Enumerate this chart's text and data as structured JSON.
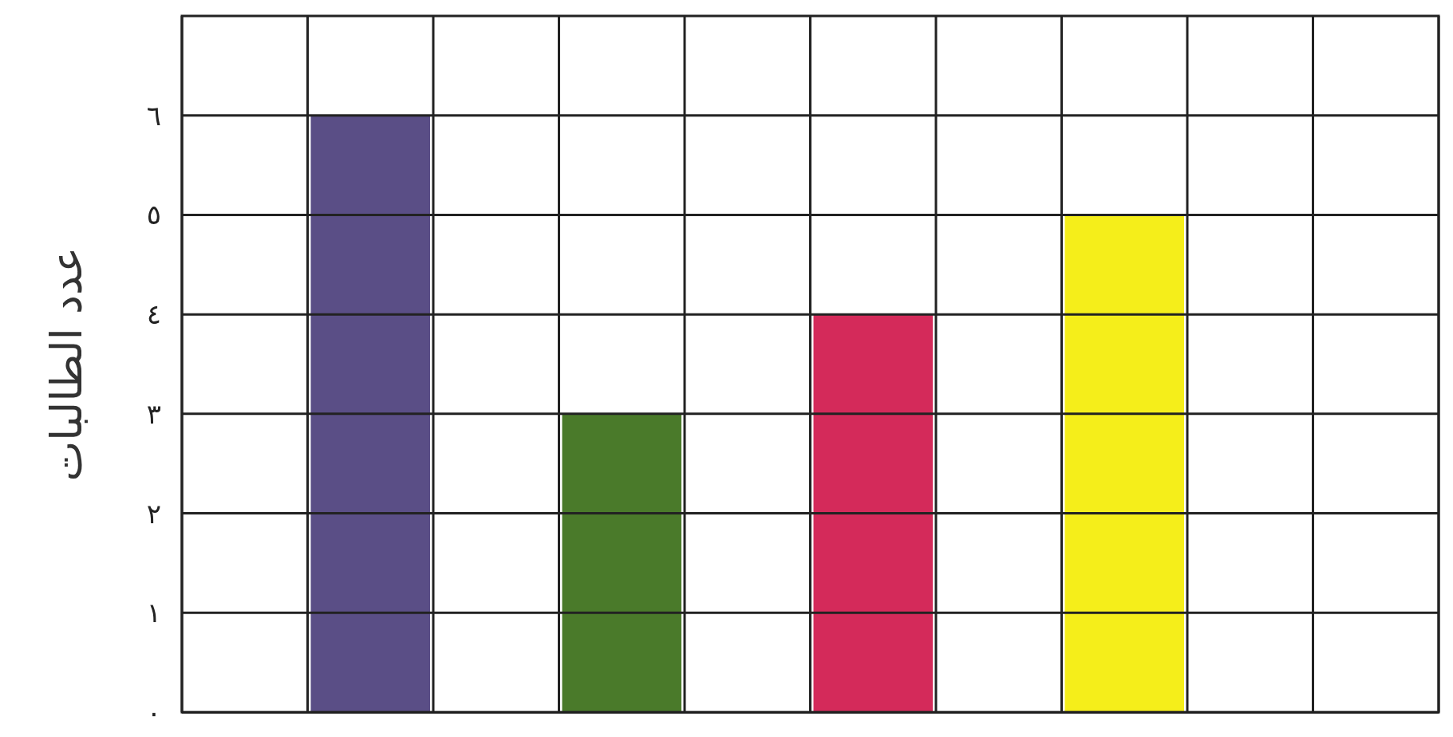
{
  "chart_data": {
    "type": "bar",
    "ylabel": "عدد الطالبات",
    "categories": [
      null,
      null,
      null,
      null,
      null,
      null,
      null,
      null,
      null,
      null
    ],
    "values": [
      null,
      6,
      null,
      3,
      null,
      4,
      null,
      5,
      null,
      null
    ],
    "colors": [
      null,
      "#5a4e86",
      null,
      "#4a7a2a",
      null,
      "#d42a5a",
      null,
      "#f5ee1a",
      null,
      null
    ],
    "ylim": [
      0,
      7
    ],
    "yticks": [
      {
        "value": 0,
        "label": "٠"
      },
      {
        "value": 1,
        "label": "١"
      },
      {
        "value": 2,
        "label": "٢"
      },
      {
        "value": 3,
        "label": "٣"
      },
      {
        "value": 4,
        "label": "٤"
      },
      {
        "value": 5,
        "label": "٥"
      },
      {
        "value": 6,
        "label": "٦"
      }
    ],
    "grid": true,
    "tick_labels": "y"
  }
}
